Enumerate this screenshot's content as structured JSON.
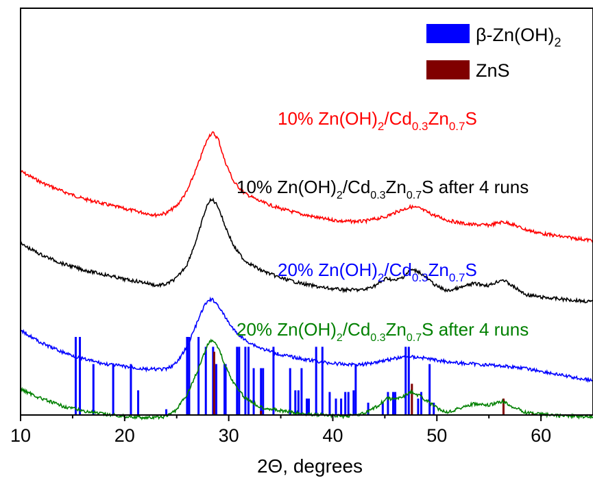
{
  "chart_data": {
    "type": "line",
    "xlabel": "2Θ, degrees",
    "ylabel": "",
    "xlim": [
      10,
      65
    ],
    "x_ticks": [
      "10",
      "20",
      "30",
      "40",
      "50",
      "60"
    ],
    "x_tick_values": [
      10,
      20,
      30,
      40,
      50,
      60
    ],
    "y_ticks": [],
    "grid": false,
    "legend_position": "top-right",
    "legend": [
      {
        "name": "β-Zn(OH)",
        "sub": "2",
        "color": "#0000ff"
      },
      {
        "name": "ZnS",
        "sub": "",
        "color": "#800000"
      }
    ],
    "series": [
      {
        "color": "#ff0000",
        "label": {
          "prefix": "10% Zn(OH)",
          "s1": "2",
          "mid1": "/Cd",
          "s2": "0.3",
          "mid2": "Zn",
          "s3": "0.7",
          "suffix": "S"
        },
        "points": [
          [
            10,
            0.595
          ],
          [
            12,
            0.636
          ],
          [
            14,
            0.668
          ],
          [
            16,
            0.695
          ],
          [
            18,
            0.714
          ],
          [
            20,
            0.732
          ],
          [
            22,
            0.748
          ],
          [
            23,
            0.755
          ],
          [
            24,
            0.748
          ],
          [
            25,
            0.722
          ],
          [
            26,
            0.668
          ],
          [
            27,
            0.576
          ],
          [
            27.6,
            0.512
          ],
          [
            28.1,
            0.465
          ],
          [
            28.5,
            0.455
          ],
          [
            29,
            0.478
          ],
          [
            29.6,
            0.555
          ],
          [
            30.5,
            0.635
          ],
          [
            31.5,
            0.675
          ],
          [
            33,
            0.705
          ],
          [
            35,
            0.732
          ],
          [
            37,
            0.752
          ],
          [
            39,
            0.768
          ],
          [
            41,
            0.778
          ],
          [
            43,
            0.778
          ],
          [
            45,
            0.762
          ],
          [
            46.5,
            0.738
          ],
          [
            47.5,
            0.725
          ],
          [
            48.3,
            0.73
          ],
          [
            49.5,
            0.752
          ],
          [
            51,
            0.774
          ],
          [
            53,
            0.789
          ],
          [
            55,
            0.792
          ],
          [
            56.3,
            0.78
          ],
          [
            57,
            0.785
          ],
          [
            58.5,
            0.808
          ],
          [
            60,
            0.822
          ],
          [
            62,
            0.834
          ],
          [
            65,
            0.848
          ]
        ]
      },
      {
        "color": "#000000",
        "label": {
          "prefix": "10% Zn(OH)",
          "s1": "2",
          "mid1": "/Cd",
          "s2": "0.3",
          "mid2": "Zn",
          "s3": "0.7",
          "suffix": "S after 4 runs"
        },
        "points": [
          [
            10,
            0.86
          ],
          [
            12,
            0.9
          ],
          [
            14,
            0.932
          ],
          [
            16,
            0.955
          ],
          [
            18,
            0.972
          ],
          [
            20,
            0.99
          ],
          [
            22,
            1.002
          ],
          [
            23,
            1.012
          ],
          [
            24,
            1.008
          ],
          [
            25,
            0.985
          ],
          [
            26,
            0.935
          ],
          [
            27,
            0.835
          ],
          [
            27.6,
            0.755
          ],
          [
            28.1,
            0.705
          ],
          [
            28.5,
            0.7
          ],
          [
            29,
            0.725
          ],
          [
            29.6,
            0.79
          ],
          [
            30.5,
            0.87
          ],
          [
            31.5,
            0.92
          ],
          [
            33,
            0.955
          ],
          [
            35,
            0.985
          ],
          [
            37,
            1.005
          ],
          [
            39,
            1.02
          ],
          [
            41,
            1.028
          ],
          [
            43,
            1.028
          ],
          [
            44.2,
            1.01
          ],
          [
            45.2,
            0.985
          ],
          [
            46,
            0.995
          ],
          [
            46.8,
            0.98
          ],
          [
            47.5,
            0.955
          ],
          [
            48.2,
            0.96
          ],
          [
            49,
            0.985
          ],
          [
            50,
            1.015
          ],
          [
            51,
            1.032
          ],
          [
            52.3,
            1.02
          ],
          [
            53.5,
            1.005
          ],
          [
            55,
            1.012
          ],
          [
            56.3,
            0.99
          ],
          [
            57.3,
            1.015
          ],
          [
            58.5,
            1.045
          ],
          [
            60,
            1.055
          ],
          [
            62,
            1.062
          ],
          [
            65,
            1.072
          ]
        ]
      },
      {
        "color": "#0000ff",
        "label": {
          "prefix": "20% Zn(OH)",
          "s1": "2",
          "mid1": "/Cd",
          "s2": "0.3",
          "mid2": "Zn",
          "s3": "0.7",
          "suffix": "S"
        },
        "points": [
          [
            10,
            1.175
          ],
          [
            12,
            1.222
          ],
          [
            14,
            1.255
          ],
          [
            16,
            1.28
          ],
          [
            18,
            1.298
          ],
          [
            20,
            1.308
          ],
          [
            22,
            1.318
          ],
          [
            24,
            1.318
          ],
          [
            25,
            1.295
          ],
          [
            26,
            1.235
          ],
          [
            27,
            1.145
          ],
          [
            27.6,
            1.09
          ],
          [
            28.1,
            1.065
          ],
          [
            28.5,
            1.065
          ],
          [
            29,
            1.085
          ],
          [
            29.6,
            1.125
          ],
          [
            30.5,
            1.175
          ],
          [
            31.5,
            1.21
          ],
          [
            33,
            1.24
          ],
          [
            35,
            1.265
          ],
          [
            37,
            1.28
          ],
          [
            39,
            1.292
          ],
          [
            41,
            1.3
          ],
          [
            43,
            1.3
          ],
          [
            45,
            1.285
          ],
          [
            47,
            1.272
          ],
          [
            48.5,
            1.275
          ],
          [
            50,
            1.285
          ],
          [
            52,
            1.295
          ],
          [
            54,
            1.3
          ],
          [
            56,
            1.305
          ],
          [
            58,
            1.312
          ],
          [
            60,
            1.325
          ],
          [
            62,
            1.34
          ],
          [
            65,
            1.36
          ]
        ]
      },
      {
        "color": "#008000",
        "label": {
          "prefix": "20% Zn(OH)",
          "s1": "2",
          "mid1": "/Cd",
          "s2": "0.3",
          "mid2": "Zn",
          "s3": "0.7",
          "suffix": "S after 4 runs"
        },
        "points": [
          [
            10,
            1.39
          ],
          [
            12,
            1.425
          ],
          [
            14,
            1.452
          ],
          [
            16,
            1.47
          ],
          [
            18,
            1.482
          ],
          [
            20,
            1.49
          ],
          [
            22,
            1.495
          ],
          [
            23,
            1.495
          ],
          [
            24,
            1.49
          ],
          [
            25,
            1.465
          ],
          [
            26,
            1.41
          ],
          [
            27,
            1.325
          ],
          [
            27.6,
            1.265
          ],
          [
            28.1,
            1.218
          ],
          [
            28.5,
            1.212
          ],
          [
            29,
            1.238
          ],
          [
            29.6,
            1.3
          ],
          [
            30.5,
            1.37
          ],
          [
            31.5,
            1.42
          ],
          [
            33,
            1.455
          ],
          [
            35,
            1.47
          ],
          [
            37,
            1.48
          ],
          [
            39,
            1.485
          ],
          [
            41,
            1.49
          ],
          [
            43,
            1.48
          ],
          [
            44.2,
            1.455
          ],
          [
            45.2,
            1.425
          ],
          [
            46,
            1.428
          ],
          [
            46.8,
            1.415
          ],
          [
            47.5,
            1.402
          ],
          [
            48.2,
            1.412
          ],
          [
            49,
            1.432
          ],
          [
            50,
            1.46
          ],
          [
            51,
            1.475
          ],
          [
            52.3,
            1.458
          ],
          [
            53.5,
            1.445
          ],
          [
            55,
            1.45
          ],
          [
            56.3,
            1.435
          ],
          [
            57.3,
            1.455
          ],
          [
            58.5,
            1.475
          ],
          [
            60,
            1.482
          ],
          [
            62,
            1.488
          ],
          [
            65,
            1.492
          ]
        ]
      }
    ],
    "reference_bars": [
      {
        "name": "β-Zn(OH)2",
        "color": "#0000ff",
        "positions": [
          15.3,
          15.7,
          17.0,
          18.9,
          20.6,
          21.3,
          24.0,
          26.0,
          26.2,
          27.1,
          27.8,
          28.5,
          28.8,
          29.6,
          29.7,
          30.8,
          31.0,
          31.6,
          31.9,
          32.4,
          33.1,
          33.3,
          34.3,
          35.9,
          36.4,
          36.7,
          37.0,
          37.5,
          37.7,
          38.4,
          39.0,
          39.7,
          40.3,
          40.8,
          41.2,
          41.5,
          42.0,
          42.2,
          43.4,
          44.8,
          45.3,
          45.8,
          46.0,
          47.0,
          47.3,
          48.2,
          48.5,
          49.3,
          49.7
        ],
        "heights": [
          0.95,
          0.95,
          0.62,
          0.62,
          0.62,
          0.3,
          0.07,
          0.95,
          0.95,
          0.95,
          0.83,
          0.83,
          0.62,
          0.62,
          0.62,
          0.83,
          0.83,
          0.83,
          0.83,
          0.57,
          0.57,
          0.57,
          0.83,
          0.57,
          0.3,
          0.3,
          0.57,
          0.2,
          0.2,
          0.83,
          0.83,
          0.28,
          0.2,
          0.2,
          0.28,
          0.28,
          0.3,
          0.62,
          0.15,
          0.15,
          0.28,
          0.28,
          0.28,
          0.83,
          0.83,
          0.2,
          0.28,
          0.62,
          0.15
        ]
      },
      {
        "name": "ZnS",
        "color": "#800000",
        "positions": [
          28.6,
          33.1,
          47.6,
          56.4,
          59.2
        ],
        "heights": [
          0.77,
          0.05,
          0.38,
          0.2,
          0.02
        ]
      }
    ]
  }
}
